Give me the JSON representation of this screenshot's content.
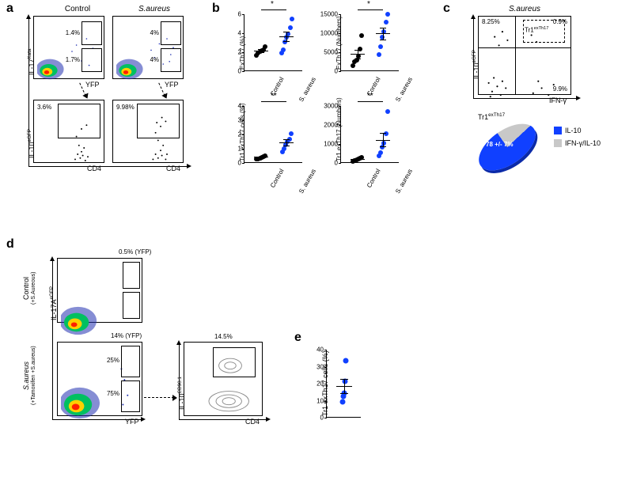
{
  "colors": {
    "black": "#000000",
    "blue": "#1040ff",
    "grey": "#c8c8c8",
    "white": "#ffffff",
    "density_low": "#2030b0",
    "density_mid": "#00c060",
    "density_high": "#ffd000",
    "density_hot": "#ff2000"
  },
  "panel_a": {
    "label": "a",
    "columns": {
      "left": "Control",
      "right": "S.aureus"
    },
    "y_top": "IL-17Kata",
    "y_bottom": "IL-10eGFP",
    "x_top": "YFP",
    "x_bottom": "CD4",
    "gates_top_left": {
      "upper": "1.4%",
      "lower": "1.7%"
    },
    "gates_top_right": {
      "upper": "4%",
      "lower": "4%"
    },
    "gates_bottom_left": "3.6%",
    "gates_bottom_right": "9.98%"
  },
  "panel_b": {
    "label": "b",
    "charts": [
      {
        "ylab": "ExTh17 (%)",
        "ymax": 6,
        "ytick": 2,
        "sig": "*",
        "groups": [
          {
            "name": "Control",
            "color": "black",
            "values": [
              1.6,
              1.8,
              2.0,
              2.1,
              2.2,
              2.5
            ],
            "mean": 2.0,
            "sem": 0.15
          },
          {
            "name": "S. aureus",
            "color": "blue",
            "values": [
              1.8,
              2.2,
              3.0,
              3.5,
              3.8,
              4.5,
              5.4
            ],
            "mean": 3.5,
            "sem": 0.5
          }
        ]
      },
      {
        "ylab": "ExTh17 (Numbers)",
        "ymax": 15000,
        "ytick": 5000,
        "sig": "*",
        "groups": [
          {
            "name": "Control",
            "color": "black",
            "values": [
              1200,
              2200,
              2800,
              3800,
              5600,
              9200
            ],
            "mean": 4100,
            "sem": 1200
          },
          {
            "name": "S. aureus",
            "color": "blue",
            "values": [
              4200,
              6200,
              8800,
              10200,
              12800,
              14800
            ],
            "mean": 9500,
            "sem": 1600
          }
        ]
      },
      {
        "ylab": "Tr1 exTh17 cells (%)",
        "ymax": 4,
        "ytick": 1,
        "sig": "**",
        "groups": [
          {
            "name": "Control",
            "color": "black",
            "values": [
              0.22,
              0.25,
              0.3,
              0.33,
              0.38,
              0.45
            ],
            "mean": 0.32,
            "sem": 0.04
          },
          {
            "name": "S. aureus",
            "color": "blue",
            "values": [
              0.75,
              0.95,
              1.25,
              1.45,
              1.6,
              2.0
            ],
            "mean": 1.33,
            "sem": 0.2
          }
        ]
      },
      {
        "ylab": "Tr1 exTh17 (Numbers)",
        "ymax": 3000,
        "ytick": 1000,
        "sig": "**",
        "groups": [
          {
            "name": "Control",
            "color": "black",
            "values": [
              60,
              90,
              120,
              150,
              190,
              260
            ],
            "mean": 145,
            "sem": 30
          },
          {
            "name": "S. aureus",
            "color": "blue",
            "values": [
              320,
              520,
              780,
              1020,
              1480,
              2680
            ],
            "mean": 1130,
            "sem": 350
          }
        ]
      }
    ]
  },
  "panel_c": {
    "label": "c",
    "title": "S.aureus",
    "y": "IL-10eGFP",
    "x": "IFN-γ",
    "quad_labels": {
      "ul": "8.25%",
      "ur": "0.9%",
      "lr": "9.9%"
    },
    "inner_gate_label": "Tr1exTh17",
    "pie_title": "Tr1exTh17",
    "pie": {
      "slices": [
        {
          "label": "IL-10",
          "pct": 78,
          "color": "#1040ff"
        },
        {
          "label": "IFN-γ/IL-10",
          "pct": 22,
          "color": "#c8c8c8"
        }
      ],
      "center_label": "78 +/- 7%"
    }
  },
  "panel_d": {
    "label": "d",
    "rows": {
      "top": {
        "title": "Control",
        "sub": "(+S.Aureous)",
        "yfp_label": "0.5% (YFP)"
      },
      "bottom": {
        "title": "S.aureus",
        "sub": "(+Tamoxifen +S.aureus)",
        "yfp_label": "14% (YFP)",
        "gate_upper": "25%",
        "gate_lower": "75%",
        "il10_gate": "14.5%"
      }
    },
    "y_left": "IL-17AeGFP",
    "x_left": "YFP",
    "y_right": "IL-10CD90.1",
    "x_right": "CD4"
  },
  "panel_e": {
    "label": "e",
    "ylab": "Tr1 exTh17 cells (%)",
    "ymax": 40,
    "ytick": 10,
    "values": [
      9,
      12,
      14,
      21,
      33
    ],
    "mean": 17.8,
    "sem": 4.3,
    "color": "#1040ff"
  }
}
